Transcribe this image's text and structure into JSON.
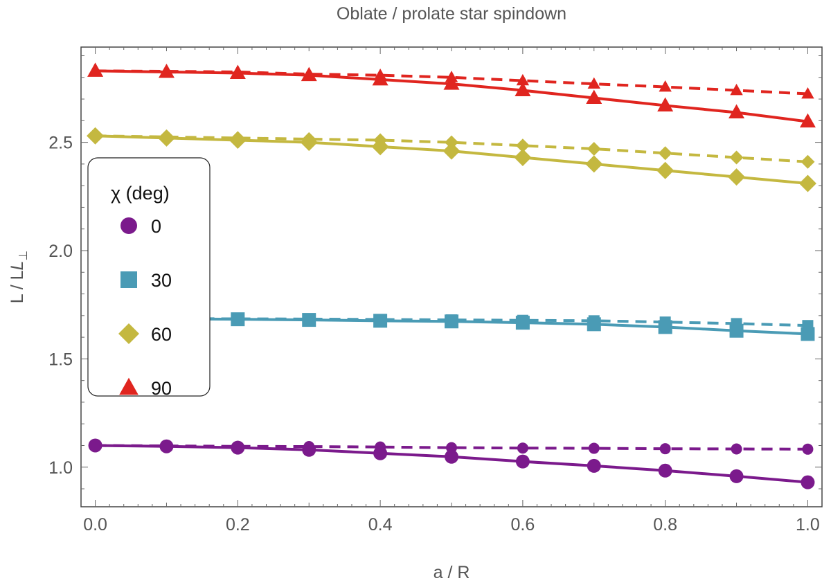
{
  "chart_data": {
    "type": "line",
    "title": "Oblate / prolate star spindown",
    "xlabel": "a / R",
    "ylabel": "L / L",
    "ylabel_subscript": "⊥",
    "xlim": [
      -0.02,
      1.02
    ],
    "ylim": [
      0.817,
      2.94
    ],
    "xticks": [
      "0.0",
      "0.2",
      "0.4",
      "0.6",
      "0.8",
      "1.0"
    ],
    "yticks": [
      "1.0",
      "1.5",
      "2.0",
      "2.5"
    ],
    "grid": false,
    "legend": {
      "title": "χ (deg)",
      "position": "left",
      "entries": [
        "0",
        "30",
        "60",
        "90"
      ]
    },
    "x": [
      0,
      0.1,
      0.2,
      0.3,
      0.4,
      0.5,
      0.6,
      0.7,
      0.8,
      0.9,
      1.0
    ],
    "series": [
      {
        "name": "0",
        "marker": "circle",
        "color": "#7b1a8c",
        "solid": [
          1.1,
          1.096,
          1.09,
          1.08,
          1.064,
          1.048,
          1.026,
          1.006,
          0.984,
          0.958,
          0.93
        ],
        "dashed": [
          1.1,
          1.098,
          1.096,
          1.095,
          1.093,
          1.09,
          1.088,
          1.087,
          1.085,
          1.084,
          1.083
        ]
      },
      {
        "name": "30",
        "marker": "square",
        "color": "#4a9bb5",
        "solid": [
          1.686,
          1.685,
          1.683,
          1.68,
          1.676,
          1.673,
          1.667,
          1.66,
          1.647,
          1.63,
          1.615
        ],
        "dashed": [
          1.686,
          1.686,
          1.685,
          1.684,
          1.682,
          1.68,
          1.678,
          1.676,
          1.67,
          1.663,
          1.654
        ]
      },
      {
        "name": "60",
        "marker": "diamond",
        "color": "#c4b840",
        "solid": [
          2.53,
          2.52,
          2.51,
          2.5,
          2.48,
          2.46,
          2.43,
          2.4,
          2.37,
          2.34,
          2.31
        ],
        "dashed": [
          2.53,
          2.525,
          2.52,
          2.515,
          2.51,
          2.5,
          2.485,
          2.47,
          2.45,
          2.43,
          2.41
        ]
      },
      {
        "name": "90",
        "marker": "triangle",
        "color": "#e0251f",
        "solid": [
          2.83,
          2.825,
          2.82,
          2.81,
          2.79,
          2.77,
          2.74,
          2.705,
          2.67,
          2.638,
          2.596
        ],
        "dashed": [
          2.83,
          2.828,
          2.825,
          2.815,
          2.81,
          2.8,
          2.785,
          2.77,
          2.756,
          2.74,
          2.724
        ]
      }
    ]
  }
}
